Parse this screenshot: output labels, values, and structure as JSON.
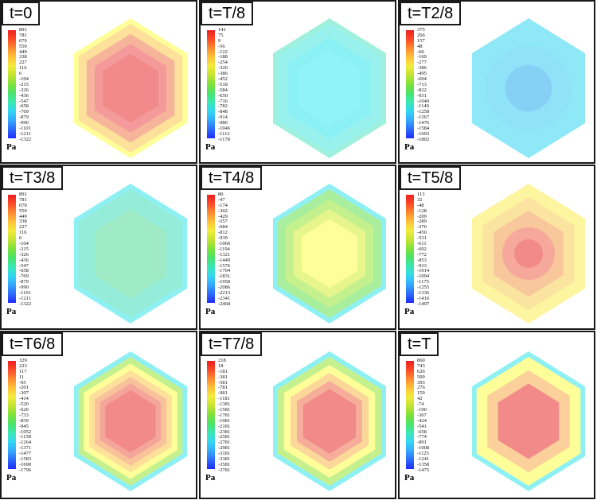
{
  "unit_label": "Pa",
  "colorbar_colors": [
    "#1f2cff",
    "#2d6bff",
    "#35a8ff",
    "#33d6f2",
    "#3ae8b4",
    "#4ae36a",
    "#7ee23a",
    "#c3e332",
    "#f2ec3c",
    "#ffc23a",
    "#ff8b30",
    "#ff4a28",
    "#ee1f1f"
  ],
  "panels": [
    {
      "label": "t=0",
      "ticks": [
        "891",
        "781",
        "670",
        "559",
        "449",
        "338",
        "227",
        "116",
        "6",
        "-104",
        "-215",
        "-326",
        "-436",
        "-547",
        "-658",
        "-769",
        "-879",
        "-990",
        "-1101",
        "-1211",
        "-1322"
      ],
      "show_colorbar": true,
      "field": {
        "outer": "#ffff99",
        "rings": [
          "#fde19a",
          "#f6b59a",
          "#f59a9a"
        ],
        "center": "#f28a8a",
        "shape": "hex"
      }
    },
    {
      "label": "t=T/8",
      "ticks": [
        "141",
        "75",
        "9",
        "-56",
        "-122",
        "-188",
        "-254",
        "-320",
        "-386",
        "-452",
        "-518",
        "-584",
        "-650",
        "-716",
        "-782",
        "-848",
        "-914",
        "-980",
        "-1046",
        "-1112",
        "-1178"
      ],
      "show_colorbar": true,
      "field": {
        "outer": "#9ff0dc",
        "rings": [
          "#99f1ee",
          "#8cf1f4"
        ],
        "center": "#8ff3f7",
        "shape": "hex"
      }
    },
    {
      "label": "t=T2/8",
      "ticks": [
        "375",
        "266",
        "157",
        "48",
        "-60",
        "-169",
        "-277",
        "-386",
        "-495",
        "-604",
        "-713",
        "-822",
        "-931",
        "-1040",
        "-1149",
        "-1258",
        "-1367",
        "-1476",
        "-1584",
        "-1693",
        "-1802"
      ],
      "show_colorbar": true,
      "field": {
        "outer": "#8fe8f7",
        "rings": [
          "#8fe2f7"
        ],
        "center": "#86cff5",
        "shape": "circle"
      }
    },
    {
      "label": "t=T3/8",
      "ticks": [
        "891",
        "781",
        "670",
        "559",
        "449",
        "338",
        "227",
        "116",
        "6",
        "-104",
        "-215",
        "-326",
        "-436",
        "-547",
        "-658",
        "-769",
        "-879",
        "-990",
        "-1101",
        "-1211",
        "-1322"
      ],
      "show_colorbar": true,
      "field": {
        "outer": "#8ff0f4",
        "rings": [
          "#95ecd8"
        ],
        "center": "#9deac4",
        "shape": "hex"
      }
    },
    {
      "label": "t=T4/8",
      "ticks": [
        "80",
        "-47",
        "-174",
        "-302",
        "-429",
        "-557",
        "-684",
        "-812",
        "-939",
        "-1066",
        "-1194",
        "-1321",
        "-1449",
        "-1576",
        "-1704",
        "-1831",
        "-1958",
        "-2086",
        "-2213",
        "-2341",
        "-2468"
      ],
      "show_colorbar": true,
      "field": {
        "outer": "#8ff0f4",
        "rings": [
          "#a9ee9c",
          "#c4f08e",
          "#e7f58d"
        ],
        "center": "#ffff99",
        "shape": "hex"
      }
    },
    {
      "label": "t=T5/8",
      "ticks": [
        "113",
        "32",
        "-48",
        "-128",
        "-209",
        "-289",
        "-370",
        "-450",
        "-531",
        "-611",
        "-692",
        "-772",
        "-853",
        "-933",
        "-1014",
        "-1094",
        "-1175",
        "-1255",
        "-1336",
        "-1416",
        "-1497"
      ],
      "show_colorbar": true,
      "field": {
        "outer": "#fdf5a0",
        "rings": [
          "#fbe4a0",
          "#f8c79b",
          "#f6a99a"
        ],
        "center": "#f28a8a",
        "shape": "circle"
      }
    },
    {
      "label": "t=T6/8",
      "ticks": [
        "329",
        "223",
        "117",
        "11",
        "-95",
        "-201",
        "-307",
        "-414",
        "-520",
        "-626",
        "-733",
        "-839",
        "-945",
        "-1052",
        "-1158",
        "-1264",
        "-1371",
        "-1477",
        "-1583",
        "-1690",
        "-1796"
      ],
      "show_colorbar": true,
      "field": {
        "outer": "#8ff0f4",
        "rings": [
          "#c5f08e",
          "#ffff99",
          "#fde19a",
          "#f8c29b",
          "#f5a69a"
        ],
        "center": "#f28a8a",
        "shape": "hex"
      }
    },
    {
      "label": "t=T7/8",
      "ticks": [
        "218",
        "18",
        "-181",
        "-381",
        "-581",
        "-781",
        "-981",
        "-1181",
        "-1381",
        "-1581",
        "-1781",
        "-1981",
        "-2181",
        "-2381",
        "-2581",
        "-2781",
        "-2981",
        "-3181",
        "-3381",
        "-3581",
        "-3781"
      ],
      "show_colorbar": true,
      "field": {
        "outer": "#8ff0f4",
        "rings": [
          "#c5f08e",
          "#ffff99",
          "#fbd89a",
          "#f6ad9a"
        ],
        "center": "#f28a8a",
        "shape": "hex"
      }
    },
    {
      "label": "t=T",
      "ticks": [
        "860",
        "743",
        "626",
        "509",
        "393",
        "276",
        "159",
        "42",
        "-74",
        "-190",
        "-307",
        "-424",
        "-541",
        "-658",
        "-774",
        "-891",
        "-1008",
        "-1125",
        "-1241",
        "-1358",
        "-1475"
      ],
      "show_colorbar": true,
      "field": {
        "outer": "#8ff0f4",
        "rings": [
          "#ffff99",
          "#fbd09a"
        ],
        "center": "#f28a8a",
        "shape": "hex"
      }
    }
  ]
}
